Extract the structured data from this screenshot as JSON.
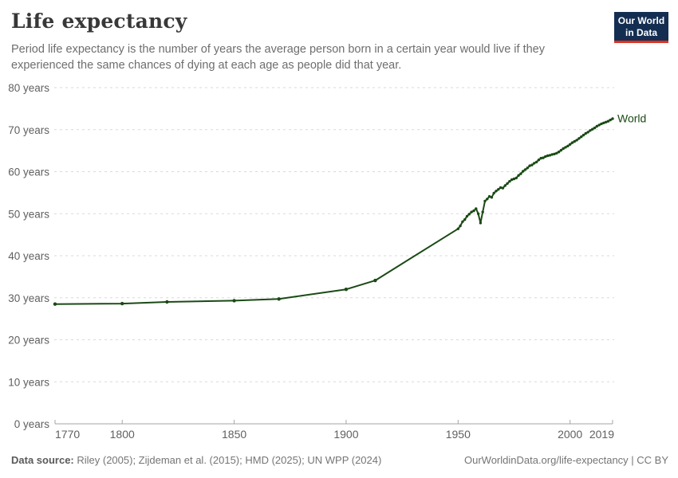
{
  "header": {
    "title": "Life expectancy",
    "subtitle": "Period life expectancy is the number of years the average person born in a certain year would live if they experienced the same chances of dying at each age as people did that year.",
    "logo": {
      "line1": "Our World",
      "line2": "in Data",
      "bg_color": "#142e52",
      "accent_color": "#e0311f"
    }
  },
  "footer": {
    "source_label": "Data source:",
    "source_text": " Riley (2005); Zijdeman et al. (2015); HMD (2025); UN WPP (2024)",
    "link_text": "OurWorldinData.org/life-expectancy | CC BY"
  },
  "chart_data": {
    "type": "line",
    "title": "Life expectancy",
    "xlabel": "",
    "ylabel": "",
    "xlim": [
      1770,
      2019
    ],
    "ylim": [
      0,
      80
    ],
    "x_ticks": [
      1770,
      1800,
      1850,
      1900,
      1950,
      2000,
      2019
    ],
    "y_ticks": [
      0,
      10,
      20,
      30,
      40,
      50,
      60,
      70,
      80
    ],
    "y_tick_suffix": " years",
    "grid": "horizontal dashed",
    "legend_position": "end-of-line label",
    "colors": {
      "line": "#1a4a15",
      "gridline": "#d9d9d9",
      "axis": "#a5a5a5",
      "tick_label": "#606060"
    },
    "series": [
      {
        "name": "World",
        "color": "#1a4a15",
        "points": [
          [
            1770,
            28.5
          ],
          [
            1800,
            28.6
          ],
          [
            1820,
            29.0
          ],
          [
            1850,
            29.3
          ],
          [
            1870,
            29.7
          ],
          [
            1900,
            32.0
          ],
          [
            1913,
            34.1
          ],
          [
            1950,
            46.4
          ],
          [
            1951,
            47.1
          ],
          [
            1952,
            48.1
          ],
          [
            1953,
            48.6
          ],
          [
            1954,
            49.4
          ],
          [
            1955,
            49.9
          ],
          [
            1956,
            50.4
          ],
          [
            1957,
            50.7
          ],
          [
            1958,
            51.2
          ],
          [
            1959,
            50.0
          ],
          [
            1960,
            47.8
          ],
          [
            1961,
            50.4
          ],
          [
            1962,
            53.0
          ],
          [
            1963,
            53.5
          ],
          [
            1964,
            54.1
          ],
          [
            1965,
            53.9
          ],
          [
            1966,
            54.9
          ],
          [
            1967,
            55.4
          ],
          [
            1968,
            55.8
          ],
          [
            1969,
            56.2
          ],
          [
            1970,
            56.1
          ],
          [
            1971,
            56.7
          ],
          [
            1972,
            57.2
          ],
          [
            1973,
            57.7
          ],
          [
            1974,
            58.1
          ],
          [
            1975,
            58.3
          ],
          [
            1976,
            58.5
          ],
          [
            1977,
            59.1
          ],
          [
            1978,
            59.5
          ],
          [
            1979,
            60.1
          ],
          [
            1980,
            60.5
          ],
          [
            1981,
            60.9
          ],
          [
            1982,
            61.4
          ],
          [
            1983,
            61.6
          ],
          [
            1984,
            62.0
          ],
          [
            1985,
            62.3
          ],
          [
            1986,
            62.8
          ],
          [
            1987,
            63.2
          ],
          [
            1988,
            63.3
          ],
          [
            1989,
            63.6
          ],
          [
            1990,
            63.8
          ],
          [
            1991,
            63.9
          ],
          [
            1992,
            64.1
          ],
          [
            1993,
            64.2
          ],
          [
            1994,
            64.4
          ],
          [
            1995,
            64.7
          ],
          [
            1996,
            65.1
          ],
          [
            1997,
            65.5
          ],
          [
            1998,
            65.8
          ],
          [
            1999,
            66.1
          ],
          [
            2000,
            66.5
          ],
          [
            2001,
            66.9
          ],
          [
            2002,
            67.2
          ],
          [
            2003,
            67.5
          ],
          [
            2004,
            67.9
          ],
          [
            2005,
            68.3
          ],
          [
            2006,
            68.7
          ],
          [
            2007,
            69.1
          ],
          [
            2008,
            69.4
          ],
          [
            2009,
            69.8
          ],
          [
            2010,
            70.1
          ],
          [
            2011,
            70.4
          ],
          [
            2012,
            70.8
          ],
          [
            2013,
            71.1
          ],
          [
            2014,
            71.4
          ],
          [
            2015,
            71.6
          ],
          [
            2016,
            71.8
          ],
          [
            2017,
            72.0
          ],
          [
            2018,
            72.3
          ],
          [
            2019,
            72.6
          ]
        ]
      }
    ]
  }
}
